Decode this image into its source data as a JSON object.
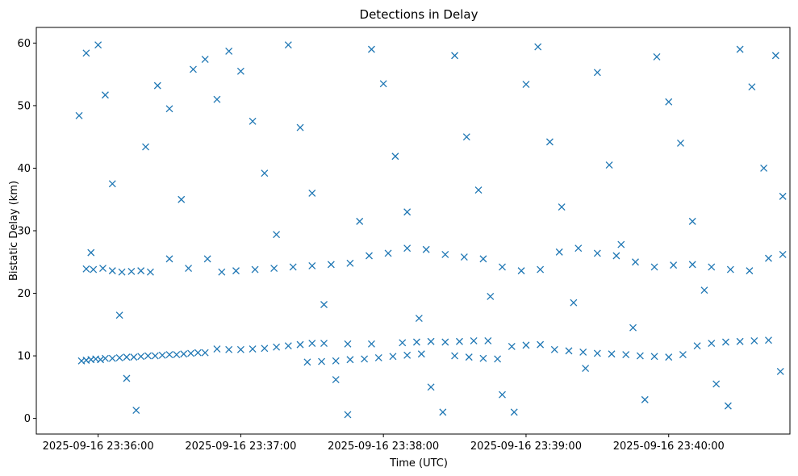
{
  "chart_data": {
    "type": "scatter",
    "title": "Detections in Delay",
    "xlabel": "Time (UTC)",
    "ylabel": "Bistatic Delay (km)",
    "marker": "x",
    "color": "#1f77b4",
    "grid": false,
    "xlim": [
      "2025-09-16 23:35:34",
      "2025-09-16 23:40:51"
    ],
    "ylim": [
      -2.5,
      62.5
    ],
    "xticks": [
      "2025-09-16 23:36:00",
      "2025-09-16 23:37:00",
      "2025-09-16 23:38:00",
      "2025-09-16 23:39:00",
      "2025-09-16 23:40:00"
    ],
    "yticks": [
      0,
      10,
      20,
      30,
      40,
      50,
      60
    ],
    "series": [
      {
        "name": "",
        "points": [
          [
            "2025-09-16 23:35:53",
            9.2
          ],
          [
            "2025-09-16 23:35:55",
            9.3
          ],
          [
            "2025-09-16 23:35:57",
            9.4
          ],
          [
            "2025-09-16 23:35:59",
            9.5
          ],
          [
            "2025-09-16 23:36:01",
            9.4
          ],
          [
            "2025-09-16 23:36:03",
            9.6
          ],
          [
            "2025-09-16 23:36:06",
            9.6
          ],
          [
            "2025-09-16 23:36:09",
            9.7
          ],
          [
            "2025-09-16 23:36:12",
            9.8
          ],
          [
            "2025-09-16 23:36:15",
            9.8
          ],
          [
            "2025-09-16 23:36:18",
            9.9
          ],
          [
            "2025-09-16 23:36:21",
            10.0
          ],
          [
            "2025-09-16 23:36:24",
            10.0
          ],
          [
            "2025-09-16 23:36:27",
            10.1
          ],
          [
            "2025-09-16 23:36:30",
            10.2
          ],
          [
            "2025-09-16 23:36:33",
            10.2
          ],
          [
            "2025-09-16 23:36:36",
            10.3
          ],
          [
            "2025-09-16 23:36:39",
            10.4
          ],
          [
            "2025-09-16 23:36:42",
            10.5
          ],
          [
            "2025-09-16 23:36:45",
            10.5
          ],
          [
            "2025-09-16 23:36:50",
            11.1
          ],
          [
            "2025-09-16 23:36:55",
            11.0
          ],
          [
            "2025-09-16 23:37:00",
            11.0
          ],
          [
            "2025-09-16 23:37:05",
            11.1
          ],
          [
            "2025-09-16 23:37:10",
            11.2
          ],
          [
            "2025-09-16 23:37:15",
            11.4
          ],
          [
            "2025-09-16 23:37:20",
            11.6
          ],
          [
            "2025-09-16 23:37:25",
            11.8
          ],
          [
            "2025-09-16 23:37:30",
            12.0
          ],
          [
            "2025-09-16 23:37:28",
            9.0
          ],
          [
            "2025-09-16 23:37:34",
            9.1
          ],
          [
            "2025-09-16 23:37:40",
            9.2
          ],
          [
            "2025-09-16 23:37:46",
            9.4
          ],
          [
            "2025-09-16 23:37:52",
            9.5
          ],
          [
            "2025-09-16 23:37:58",
            9.7
          ],
          [
            "2025-09-16 23:38:04",
            9.9
          ],
          [
            "2025-09-16 23:38:10",
            10.1
          ],
          [
            "2025-09-16 23:38:16",
            10.3
          ],
          [
            "2025-09-16 23:37:35",
            12.0
          ],
          [
            "2025-09-16 23:37:45",
            11.9
          ],
          [
            "2025-09-16 23:37:55",
            11.9
          ],
          [
            "2025-09-16 23:38:08",
            12.1
          ],
          [
            "2025-09-16 23:38:14",
            12.2
          ],
          [
            "2025-09-16 23:38:20",
            12.3
          ],
          [
            "2025-09-16 23:38:26",
            12.2
          ],
          [
            "2025-09-16 23:38:32",
            12.3
          ],
          [
            "2025-09-16 23:38:38",
            12.4
          ],
          [
            "2025-09-16 23:38:44",
            12.4
          ],
          [
            "2025-09-16 23:38:30",
            10.0
          ],
          [
            "2025-09-16 23:38:36",
            9.8
          ],
          [
            "2025-09-16 23:38:42",
            9.6
          ],
          [
            "2025-09-16 23:38:48",
            9.5
          ],
          [
            "2025-09-16 23:38:54",
            11.5
          ],
          [
            "2025-09-16 23:39:00",
            11.7
          ],
          [
            "2025-09-16 23:39:06",
            11.8
          ],
          [
            "2025-09-16 23:39:12",
            11.0
          ],
          [
            "2025-09-16 23:39:18",
            10.8
          ],
          [
            "2025-09-16 23:39:24",
            10.6
          ],
          [
            "2025-09-16 23:39:30",
            10.4
          ],
          [
            "2025-09-16 23:39:36",
            10.3
          ],
          [
            "2025-09-16 23:39:42",
            10.2
          ],
          [
            "2025-09-16 23:39:48",
            10.0
          ],
          [
            "2025-09-16 23:39:54",
            9.9
          ],
          [
            "2025-09-16 23:40:00",
            9.8
          ],
          [
            "2025-09-16 23:40:06",
            10.2
          ],
          [
            "2025-09-16 23:40:12",
            11.6
          ],
          [
            "2025-09-16 23:40:18",
            12.0
          ],
          [
            "2025-09-16 23:40:24",
            12.2
          ],
          [
            "2025-09-16 23:40:30",
            12.3
          ],
          [
            "2025-09-16 23:40:36",
            12.4
          ],
          [
            "2025-09-16 23:40:42",
            12.5
          ],
          [
            "2025-09-16 23:40:47",
            7.5
          ],
          [
            "2025-09-16 23:35:55",
            23.9
          ],
          [
            "2025-09-16 23:35:58",
            23.8
          ],
          [
            "2025-09-16 23:36:02",
            24.0
          ],
          [
            "2025-09-16 23:36:06",
            23.6
          ],
          [
            "2025-09-16 23:36:10",
            23.4
          ],
          [
            "2025-09-16 23:36:14",
            23.5
          ],
          [
            "2025-09-16 23:36:18",
            23.6
          ],
          [
            "2025-09-16 23:36:22",
            23.4
          ],
          [
            "2025-09-16 23:36:30",
            25.5
          ],
          [
            "2025-09-16 23:36:38",
            24.0
          ],
          [
            "2025-09-16 23:36:46",
            25.5
          ],
          [
            "2025-09-16 23:36:52",
            23.4
          ],
          [
            "2025-09-16 23:36:58",
            23.6
          ],
          [
            "2025-09-16 23:37:06",
            23.8
          ],
          [
            "2025-09-16 23:37:14",
            24.0
          ],
          [
            "2025-09-16 23:37:22",
            24.2
          ],
          [
            "2025-09-16 23:37:30",
            24.4
          ],
          [
            "2025-09-16 23:37:38",
            24.6
          ],
          [
            "2025-09-16 23:37:46",
            24.8
          ],
          [
            "2025-09-16 23:37:54",
            26.0
          ],
          [
            "2025-09-16 23:38:02",
            26.4
          ],
          [
            "2025-09-16 23:38:10",
            27.2
          ],
          [
            "2025-09-16 23:38:18",
            27.0
          ],
          [
            "2025-09-16 23:38:26",
            26.2
          ],
          [
            "2025-09-16 23:38:34",
            25.8
          ],
          [
            "2025-09-16 23:38:42",
            25.5
          ],
          [
            "2025-09-16 23:38:50",
            24.2
          ],
          [
            "2025-09-16 23:38:58",
            23.6
          ],
          [
            "2025-09-16 23:39:06",
            23.8
          ],
          [
            "2025-09-16 23:39:14",
            26.6
          ],
          [
            "2025-09-16 23:39:22",
            27.2
          ],
          [
            "2025-09-16 23:39:30",
            26.4
          ],
          [
            "2025-09-16 23:39:38",
            26.0
          ],
          [
            "2025-09-16 23:39:46",
            25.0
          ],
          [
            "2025-09-16 23:39:54",
            24.2
          ],
          [
            "2025-09-16 23:40:02",
            24.5
          ],
          [
            "2025-09-16 23:40:10",
            24.6
          ],
          [
            "2025-09-16 23:40:18",
            24.2
          ],
          [
            "2025-09-16 23:40:26",
            23.8
          ],
          [
            "2025-09-16 23:40:34",
            23.6
          ],
          [
            "2025-09-16 23:40:42",
            25.6
          ],
          [
            "2025-09-16 23:40:48",
            26.2
          ],
          [
            "2025-09-16 23:35:52",
            48.4
          ],
          [
            "2025-09-16 23:35:55",
            58.4
          ],
          [
            "2025-09-16 23:35:57",
            26.5
          ],
          [
            "2025-09-16 23:36:00",
            59.7
          ],
          [
            "2025-09-16 23:36:03",
            51.7
          ],
          [
            "2025-09-16 23:36:06",
            37.5
          ],
          [
            "2025-09-16 23:36:09",
            16.5
          ],
          [
            "2025-09-16 23:36:12",
            6.4
          ],
          [
            "2025-09-16 23:36:16",
            1.3
          ],
          [
            "2025-09-16 23:36:20",
            43.4
          ],
          [
            "2025-09-16 23:36:25",
            53.2
          ],
          [
            "2025-09-16 23:36:30",
            49.5
          ],
          [
            "2025-09-16 23:36:35",
            35.0
          ],
          [
            "2025-09-16 23:36:40",
            55.8
          ],
          [
            "2025-09-16 23:36:45",
            57.4
          ],
          [
            "2025-09-16 23:36:50",
            51.0
          ],
          [
            "2025-09-16 23:36:55",
            58.7
          ],
          [
            "2025-09-16 23:37:00",
            55.5
          ],
          [
            "2025-09-16 23:37:05",
            47.5
          ],
          [
            "2025-09-16 23:37:10",
            39.2
          ],
          [
            "2025-09-16 23:37:15",
            29.4
          ],
          [
            "2025-09-16 23:37:20",
            59.7
          ],
          [
            "2025-09-16 23:37:25",
            46.5
          ],
          [
            "2025-09-16 23:37:30",
            36.0
          ],
          [
            "2025-09-16 23:37:35",
            18.2
          ],
          [
            "2025-09-16 23:37:40",
            6.2
          ],
          [
            "2025-09-16 23:37:45",
            0.6
          ],
          [
            "2025-09-16 23:37:50",
            31.5
          ],
          [
            "2025-09-16 23:37:55",
            59.0
          ],
          [
            "2025-09-16 23:38:00",
            53.5
          ],
          [
            "2025-09-16 23:38:05",
            41.9
          ],
          [
            "2025-09-16 23:38:10",
            33.0
          ],
          [
            "2025-09-16 23:38:15",
            16.0
          ],
          [
            "2025-09-16 23:38:20",
            5.0
          ],
          [
            "2025-09-16 23:38:25",
            1.0
          ],
          [
            "2025-09-16 23:38:30",
            58.0
          ],
          [
            "2025-09-16 23:38:35",
            45.0
          ],
          [
            "2025-09-16 23:38:40",
            36.5
          ],
          [
            "2025-09-16 23:38:45",
            19.5
          ],
          [
            "2025-09-16 23:38:50",
            3.8
          ],
          [
            "2025-09-16 23:38:55",
            1.0
          ],
          [
            "2025-09-16 23:39:00",
            53.4
          ],
          [
            "2025-09-16 23:39:05",
            59.4
          ],
          [
            "2025-09-16 23:39:10",
            44.2
          ],
          [
            "2025-09-16 23:39:15",
            33.8
          ],
          [
            "2025-09-16 23:39:20",
            18.5
          ],
          [
            "2025-09-16 23:39:25",
            8.0
          ],
          [
            "2025-09-16 23:39:30",
            55.3
          ],
          [
            "2025-09-16 23:39:35",
            40.5
          ],
          [
            "2025-09-16 23:39:40",
            27.8
          ],
          [
            "2025-09-16 23:39:45",
            14.5
          ],
          [
            "2025-09-16 23:39:50",
            3.0
          ],
          [
            "2025-09-16 23:39:55",
            57.8
          ],
          [
            "2025-09-16 23:40:00",
            50.6
          ],
          [
            "2025-09-16 23:40:05",
            44.0
          ],
          [
            "2025-09-16 23:40:10",
            31.5
          ],
          [
            "2025-09-16 23:40:15",
            20.5
          ],
          [
            "2025-09-16 23:40:20",
            5.5
          ],
          [
            "2025-09-16 23:40:25",
            2.0
          ],
          [
            "2025-09-16 23:40:30",
            59.0
          ],
          [
            "2025-09-16 23:40:35",
            53.0
          ],
          [
            "2025-09-16 23:40:40",
            40.0
          ],
          [
            "2025-09-16 23:40:45",
            58.0
          ],
          [
            "2025-09-16 23:40:48",
            35.5
          ]
        ]
      }
    ]
  }
}
